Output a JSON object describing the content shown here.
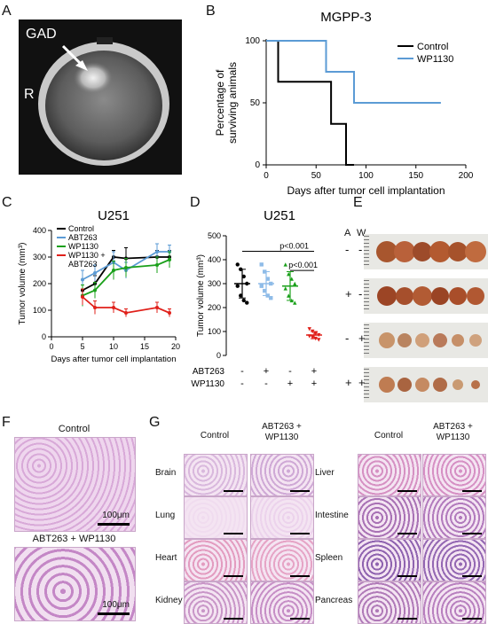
{
  "panels": {
    "A": {
      "label": "A",
      "annot_gad": "GAD",
      "annot_r": "R"
    },
    "B": {
      "label": "B"
    },
    "C": {
      "label": "C"
    },
    "D": {
      "label": "D"
    },
    "E": {
      "label": "E",
      "col_a": "A",
      "col_w": "W",
      "rows": [
        [
          "-",
          "-"
        ],
        [
          "+",
          "-"
        ],
        [
          "-",
          "+"
        ],
        [
          "+",
          "+"
        ]
      ]
    },
    "F": {
      "label": "F",
      "top_title": "Control",
      "bottom_title": "ABT263 + WP1130",
      "scale": "100μm"
    },
    "G": {
      "label": "G",
      "col_control": "Control",
      "col_combo": "ABT263 + WP1130",
      "left_tissues": [
        "Brain",
        "Lung",
        "Heart",
        "Kidney"
      ],
      "right_tissues": [
        "Liver",
        "Intestine",
        "Spleen",
        "Pancreas"
      ]
    }
  },
  "chart_data": [
    {
      "id": "B",
      "type": "line",
      "title": "MGPP-3",
      "xlabel": "Days after tumor cell implantation",
      "ylabel": "Percentage of surviving animals",
      "xlim": [
        0,
        200
      ],
      "ylim": [
        0,
        100
      ],
      "xticks": [
        "0",
        "50",
        "100",
        "150",
        "200"
      ],
      "yticks": [
        "0",
        "50",
        "100"
      ],
      "legend": "top-right",
      "series": [
        {
          "name": "Control",
          "color": "#000000",
          "x": [
            0,
            12,
            12,
            65,
            65,
            80,
            80,
            88,
            88
          ],
          "y": [
            100,
            100,
            67,
            67,
            33,
            33,
            0,
            0,
            0
          ]
        },
        {
          "name": "WP1130",
          "color": "#5b9bd5",
          "x": [
            0,
            60,
            60,
            75,
            75,
            88,
            88,
            175
          ],
          "y": [
            100,
            100,
            75,
            75,
            75,
            75,
            50,
            50
          ]
        }
      ]
    },
    {
      "id": "C",
      "type": "line",
      "title": "U251",
      "xlabel": "Days after tumor cell implantation",
      "ylabel": "Tumor volume (mm³)",
      "xlim": [
        0,
        20
      ],
      "ylim": [
        0,
        400
      ],
      "xticks": [
        "0",
        "5",
        "10",
        "15",
        "20"
      ],
      "yticks": [
        "0",
        "100",
        "200",
        "300",
        "400"
      ],
      "legend": "top-left",
      "series": [
        {
          "name": "Control",
          "color": "#000000",
          "x": [
            5,
            7,
            10,
            12,
            17,
            19
          ],
          "y": [
            175,
            200,
            300,
            295,
            300,
            300
          ],
          "err": [
            20,
            30,
            25,
            40,
            25,
            25
          ]
        },
        {
          "name": "ABT263",
          "color": "#5b9bd5",
          "x": [
            5,
            7,
            10,
            12,
            17,
            19
          ],
          "y": [
            215,
            240,
            280,
            250,
            320,
            320
          ],
          "err": [
            35,
            30,
            40,
            30,
            30,
            25
          ]
        },
        {
          "name": "WP1130",
          "color": "#1aa01a",
          "x": [
            5,
            7,
            10,
            12,
            17,
            19
          ],
          "y": [
            155,
            175,
            250,
            260,
            270,
            290
          ],
          "err": [
            40,
            30,
            35,
            35,
            30,
            30
          ]
        },
        {
          "name": "WP1130 + ABT263",
          "color": "#e0201a",
          "x": [
            5,
            7,
            10,
            12,
            17,
            19
          ],
          "y": [
            150,
            110,
            110,
            90,
            110,
            90
          ],
          "err": [
            30,
            25,
            20,
            15,
            20,
            15
          ]
        }
      ]
    },
    {
      "id": "D",
      "type": "scatter",
      "title": "U251",
      "ylabel": "Tumor volume (mm³)",
      "ylim": [
        0,
        500
      ],
      "yticks": [
        "0",
        "100",
        "200",
        "300",
        "400",
        "500"
      ],
      "row1_label": "ABT263",
      "row2_label": "WP1130",
      "row1_marks": [
        "-",
        "+",
        "-",
        "+"
      ],
      "row2_marks": [
        "-",
        "-",
        "+",
        "+"
      ],
      "sig_top": "p<0.001",
      "sig_mid": "p<0.001",
      "groups": [
        {
          "color": "#000000",
          "shape": "circle",
          "mean": 300,
          "sd": 60,
          "values": [
            380,
            360,
            330,
            300,
            290,
            250,
            230,
            220
          ]
        },
        {
          "color": "#8fbce8",
          "shape": "square",
          "mean": 300,
          "sd": 50,
          "values": [
            380,
            350,
            320,
            300,
            290,
            270,
            250,
            240
          ]
        },
        {
          "color": "#1aa01a",
          "shape": "triangle",
          "mean": 290,
          "sd": 60,
          "values": [
            380,
            340,
            320,
            300,
            280,
            250,
            230,
            220
          ]
        },
        {
          "color": "#e0201a",
          "shape": "triangle-down",
          "mean": 85,
          "sd": 15,
          "values": [
            110,
            100,
            90,
            85,
            80,
            75,
            70,
            65
          ]
        }
      ]
    }
  ]
}
